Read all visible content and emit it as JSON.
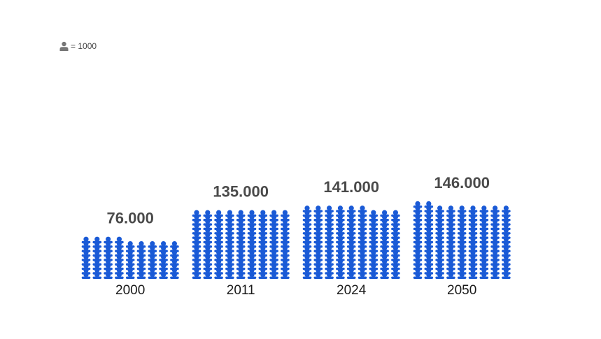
{
  "legend": {
    "icon": "person-icon",
    "text": "= 1000"
  },
  "colors": {
    "icon": "#1a5ad6",
    "value_label": "#4a4a4a",
    "category_label": "#1a1a1a"
  },
  "chart_data": {
    "type": "bar",
    "style": "pictogram",
    "unit_per_icon": 1000,
    "categories": [
      "2000",
      "2011",
      "2024",
      "2050"
    ],
    "values": [
      76000,
      135000,
      141000,
      146000
    ],
    "value_labels": [
      "76.000",
      "135.000",
      "141.000",
      "146.000"
    ],
    "title": "",
    "xlabel": "",
    "ylabel": "",
    "grid": false
  }
}
